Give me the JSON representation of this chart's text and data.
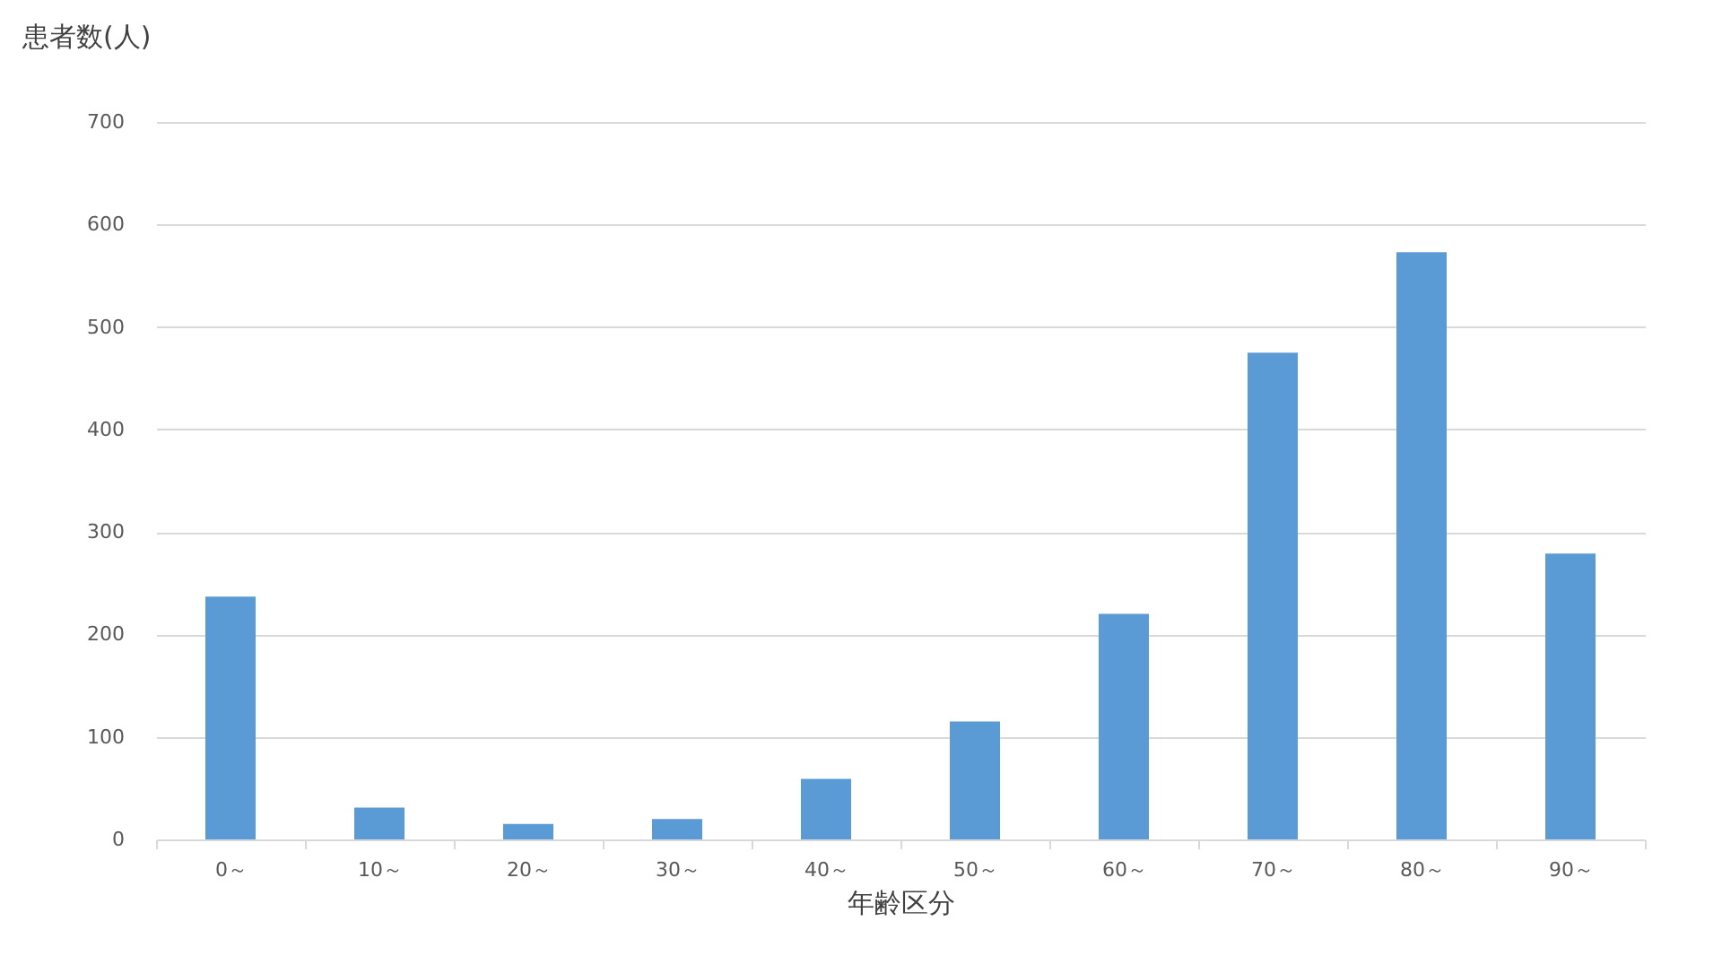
{
  "chart_data": {
    "type": "bar",
    "ylabel": "患者数(人)",
    "xlabel": "年齢区分",
    "categories": [
      "0～",
      "10～",
      "20～",
      "30～",
      "40～",
      "50～",
      "60～",
      "70～",
      "80～",
      "90～"
    ],
    "values": [
      237,
      31,
      15,
      20,
      59,
      115,
      220,
      475,
      573,
      279
    ],
    "color": "#5b9bd5",
    "ylim": [
      0,
      700
    ],
    "yticks": [
      0,
      100,
      200,
      300,
      400,
      500,
      600,
      700
    ],
    "grid": "y"
  }
}
